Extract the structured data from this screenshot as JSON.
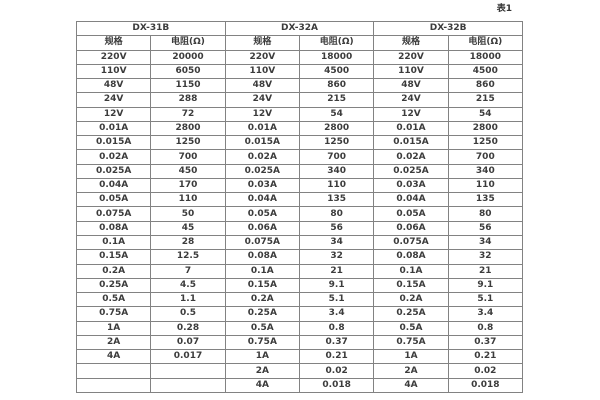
{
  "caption": "表1",
  "table": {
    "groups": [
      {
        "label": "DX-31B"
      },
      {
        "label": "DX-32A"
      },
      {
        "label": "DX-32B"
      }
    ],
    "col_headers": {
      "spec": "规格",
      "resistance": "电阻(Ω)"
    },
    "rows": [
      [
        [
          "220V",
          "20000"
        ],
        [
          "220V",
          "18000"
        ],
        [
          "220V",
          "18000"
        ]
      ],
      [
        [
          "110V",
          "6050"
        ],
        [
          "110V",
          "4500"
        ],
        [
          "110V",
          "4500"
        ]
      ],
      [
        [
          "48V",
          "1150"
        ],
        [
          "48V",
          "860"
        ],
        [
          "48V",
          "860"
        ]
      ],
      [
        [
          "24V",
          "288"
        ],
        [
          "24V",
          "215"
        ],
        [
          "24V",
          "215"
        ]
      ],
      [
        [
          "12V",
          "72"
        ],
        [
          "12V",
          "54"
        ],
        [
          "12V",
          "54"
        ]
      ],
      [
        [
          "0.01A",
          "2800"
        ],
        [
          "0.01A",
          "2800"
        ],
        [
          "0.01A",
          "2800"
        ]
      ],
      [
        [
          "0.015A",
          "1250"
        ],
        [
          "0.015A",
          "1250"
        ],
        [
          "0.015A",
          "1250"
        ]
      ],
      [
        [
          "0.02A",
          "700"
        ],
        [
          "0.02A",
          "700"
        ],
        [
          "0.02A",
          "700"
        ]
      ],
      [
        [
          "0.025A",
          "450"
        ],
        [
          "0.025A",
          "340"
        ],
        [
          "0.025A",
          "340"
        ]
      ],
      [
        [
          "0.04A",
          "170"
        ],
        [
          "0.03A",
          "110"
        ],
        [
          "0.03A",
          "110"
        ]
      ],
      [
        [
          "0.05A",
          "110"
        ],
        [
          "0.04A",
          "135"
        ],
        [
          "0.04A",
          "135"
        ]
      ],
      [
        [
          "0.075A",
          "50"
        ],
        [
          "0.05A",
          "80"
        ],
        [
          "0.05A",
          "80"
        ]
      ],
      [
        [
          "0.08A",
          "45"
        ],
        [
          "0.06A",
          "56"
        ],
        [
          "0.06A",
          "56"
        ]
      ],
      [
        [
          "0.1A",
          "28"
        ],
        [
          "0.075A",
          "34"
        ],
        [
          "0.075A",
          "34"
        ]
      ],
      [
        [
          "0.15A",
          "12.5"
        ],
        [
          "0.08A",
          "32"
        ],
        [
          "0.08A",
          "32"
        ]
      ],
      [
        [
          "0.2A",
          "7"
        ],
        [
          "0.1A",
          "21"
        ],
        [
          "0.1A",
          "21"
        ]
      ],
      [
        [
          "0.25A",
          "4.5"
        ],
        [
          "0.15A",
          "9.1"
        ],
        [
          "0.15A",
          "9.1"
        ]
      ],
      [
        [
          "0.5A",
          "1.1"
        ],
        [
          "0.2A",
          "5.1"
        ],
        [
          "0.2A",
          "5.1"
        ]
      ],
      [
        [
          "0.75A",
          "0.5"
        ],
        [
          "0.25A",
          "3.4"
        ],
        [
          "0.25A",
          "3.4"
        ]
      ],
      [
        [
          "1A",
          "0.28"
        ],
        [
          "0.5A",
          "0.8"
        ],
        [
          "0.5A",
          "0.8"
        ]
      ],
      [
        [
          "2A",
          "0.07"
        ],
        [
          "0.75A",
          "0.37"
        ],
        [
          "0.75A",
          "0.37"
        ]
      ],
      [
        [
          "4A",
          "0.017"
        ],
        [
          "1A",
          "0.21"
        ],
        [
          "1A",
          "0.21"
        ]
      ],
      [
        [
          "",
          ""
        ],
        [
          "2A",
          "0.02"
        ],
        [
          "2A",
          "0.02"
        ]
      ],
      [
        [
          "",
          ""
        ],
        [
          "4A",
          "0.018"
        ],
        [
          "4A",
          "0.018"
        ]
      ]
    ]
  }
}
